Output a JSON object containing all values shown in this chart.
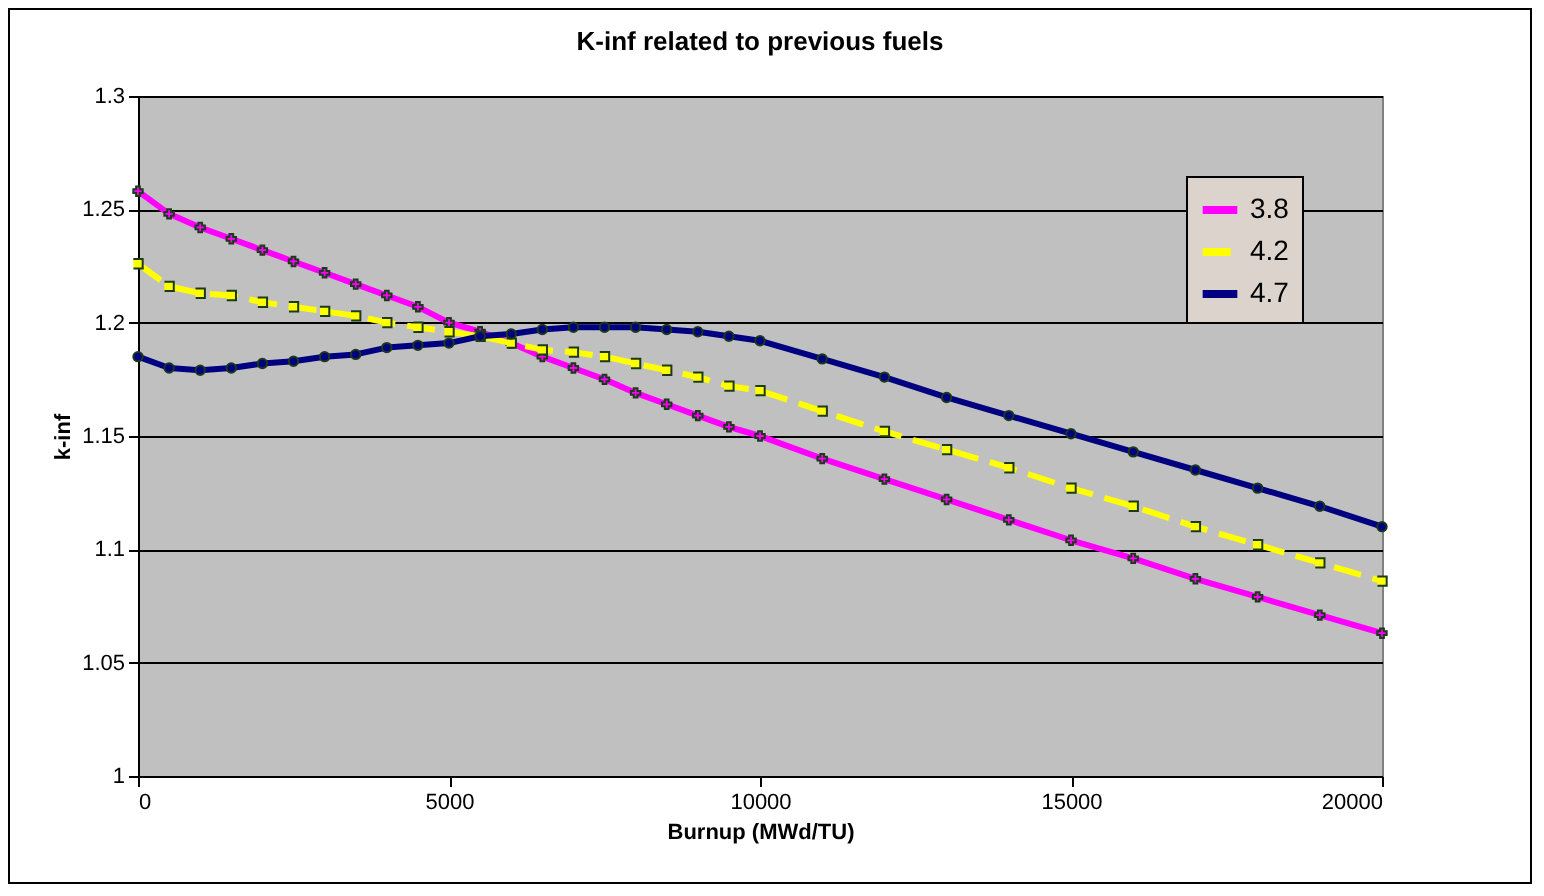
{
  "chart_data": {
    "type": "line",
    "title": "K-inf related to previous fuels",
    "xlabel": "Burnup (MWd/TU)",
    "ylabel": "k-inf",
    "x": [
      0,
      500,
      1000,
      1500,
      2000,
      2500,
      3000,
      3500,
      4000,
      4500,
      5000,
      5500,
      6000,
      6500,
      7000,
      7500,
      8000,
      8500,
      9000,
      9500,
      10000,
      11000,
      12000,
      13000,
      14000,
      15000,
      16000,
      17000,
      18000,
      19000,
      20000
    ],
    "series": [
      {
        "name": "3.8",
        "color": "#ff00ff",
        "marker": "cross",
        "line_style": "solid",
        "values": [
          1.258,
          1.248,
          1.242,
          1.237,
          1.232,
          1.227,
          1.222,
          1.217,
          1.212,
          1.207,
          1.2,
          1.196,
          1.191,
          1.185,
          1.18,
          1.175,
          1.169,
          1.164,
          1.159,
          1.154,
          1.15,
          1.14,
          1.131,
          1.122,
          1.113,
          1.104,
          1.096,
          1.087,
          1.079,
          1.071,
          1.063
        ]
      },
      {
        "name": "4.2",
        "color": "#ffff00",
        "marker": "square",
        "line_style": "dashed",
        "values": [
          1.226,
          1.216,
          1.213,
          1.212,
          1.209,
          1.207,
          1.205,
          1.203,
          1.2,
          1.198,
          1.196,
          1.194,
          1.191,
          1.188,
          1.187,
          1.185,
          1.182,
          1.179,
          1.176,
          1.172,
          1.17,
          1.161,
          1.152,
          1.144,
          1.136,
          1.127,
          1.119,
          1.11,
          1.102,
          1.094,
          1.086
        ]
      },
      {
        "name": "4.7",
        "color": "#000080",
        "marker": "circle",
        "line_style": "solid",
        "values": [
          1.185,
          1.18,
          1.179,
          1.18,
          1.182,
          1.183,
          1.185,
          1.186,
          1.189,
          1.19,
          1.191,
          1.194,
          1.195,
          1.197,
          1.198,
          1.198,
          1.198,
          1.197,
          1.196,
          1.194,
          1.192,
          1.184,
          1.176,
          1.167,
          1.159,
          1.151,
          1.143,
          1.135,
          1.127,
          1.119,
          1.11
        ]
      }
    ],
    "xlim": [
      0,
      20000
    ],
    "xticks": [
      0,
      5000,
      10000,
      15000,
      20000
    ],
    "ylim": [
      1,
      1.3
    ],
    "yticks": [
      1,
      1.05,
      1.1,
      1.15,
      1.2,
      1.25,
      1.3
    ],
    "grid": "y",
    "legend": "top right"
  }
}
